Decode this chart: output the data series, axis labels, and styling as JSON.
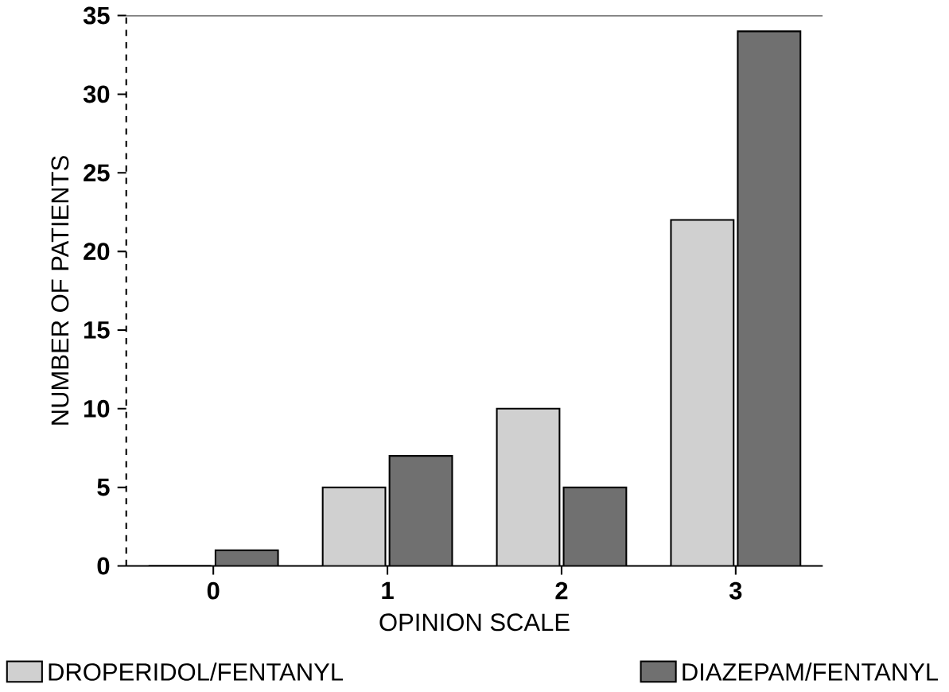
{
  "chart_data": {
    "type": "bar",
    "xlabel": "OPINION SCALE",
    "ylabel": "NUMBER OF PATIENTS",
    "categories": [
      "0",
      "1",
      "2",
      "3"
    ],
    "series": [
      {
        "name": "DROPERIDOL/FENTANYL",
        "color": "#d0d0d0",
        "values": [
          0,
          5,
          10,
          22
        ]
      },
      {
        "name": "DIAZEPAM/FENTANYL",
        "color": "#707070",
        "values": [
          1,
          7,
          5,
          34
        ]
      }
    ],
    "ylim": [
      0,
      35
    ],
    "yticks": [
      0,
      5,
      10,
      15,
      20,
      25,
      30,
      35
    ],
    "grid": false,
    "legend": "bottom"
  }
}
